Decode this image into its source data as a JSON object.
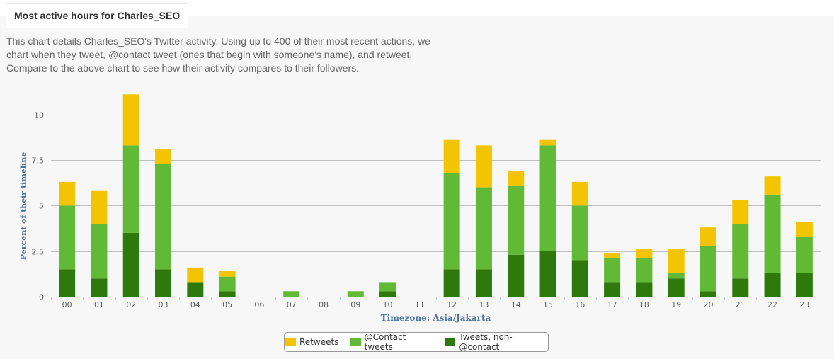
{
  "header": {
    "title": "Most active hours for Charles_SEO",
    "description": "This chart details Charles_SEO's Twitter activity. Using up to 400 of their most recent actions, we chart when they tweet, @contact tweet (ones that begin with someone's name), and retweet. Compare to the above chart to see how their activity compares to their followers."
  },
  "colors": {
    "retweets": "#f2c500",
    "contact": "#62b935",
    "tweets": "#2d7a0a"
  },
  "chart_data": {
    "type": "bar",
    "stacked": true,
    "categories": [
      "00",
      "01",
      "02",
      "03",
      "04",
      "05",
      "06",
      "07",
      "08",
      "09",
      "10",
      "11",
      "12",
      "13",
      "14",
      "15",
      "16",
      "17",
      "18",
      "19",
      "20",
      "21",
      "22",
      "23"
    ],
    "series": [
      {
        "name": "Tweets, non-@contact",
        "key": "tweets",
        "values": [
          1.5,
          1.0,
          3.5,
          1.5,
          0.8,
          0.3,
          0,
          0,
          0,
          0,
          0.3,
          0,
          1.5,
          1.5,
          2.3,
          2.5,
          2.0,
          0.8,
          0.8,
          1.0,
          0.3,
          1.0,
          1.3,
          1.3
        ]
      },
      {
        "name": "@Contact tweets",
        "key": "contact",
        "values": [
          3.5,
          3.0,
          4.8,
          5.8,
          0,
          0.8,
          0,
          0.3,
          0,
          0.3,
          0.5,
          0,
          5.3,
          4.5,
          3.8,
          5.8,
          3.0,
          1.3,
          1.3,
          0.3,
          2.5,
          3.0,
          4.3,
          2.0
        ]
      },
      {
        "name": "Retweets",
        "key": "retweets",
        "values": [
          1.3,
          1.8,
          2.8,
          0.8,
          0.8,
          0.3,
          0,
          0,
          0,
          0,
          0,
          0,
          1.8,
          2.3,
          0.8,
          0.3,
          1.3,
          0.3,
          0.5,
          1.3,
          1.0,
          1.3,
          1.0,
          0.8
        ]
      }
    ],
    "xlabel": "Timezone: Asia/Jakarta",
    "ylabel": "Percent of their timeline",
    "ylim": [
      0,
      11.5
    ],
    "yticks": [
      0,
      2.5,
      5,
      7.5,
      10
    ],
    "ytick_labels": [
      "0",
      "2.5",
      "5",
      "7.5",
      "10"
    ],
    "grid": true,
    "legend": {
      "position": "bottom-center",
      "items": [
        "Retweets",
        "@Contact tweets",
        "Tweets, non-@contact"
      ]
    }
  }
}
